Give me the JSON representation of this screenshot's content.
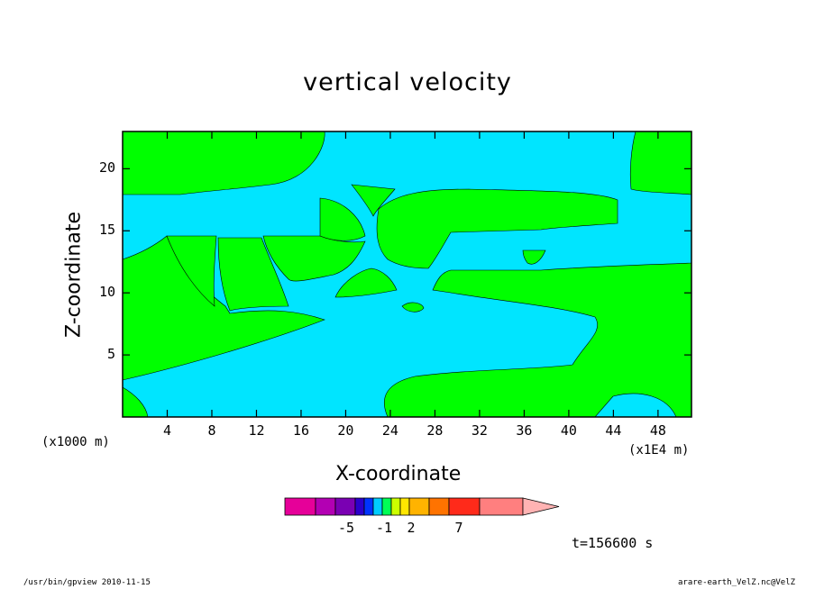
{
  "chart_data": {
    "type": "heatmap",
    "title": "vertical velocity",
    "xlabel": "X-coordinate",
    "ylabel": "Z-coordinate",
    "x_unit_note": "(x1000 m)",
    "x_axis_scale_note": "(x1E4 m)",
    "xlim": [
      0,
      51
    ],
    "ylim": [
      0,
      23
    ],
    "x_ticks": [
      "4",
      "8",
      "12",
      "16",
      "20",
      "24",
      "28",
      "32",
      "36",
      "40",
      "44",
      "48"
    ],
    "x_tick_values": [
      4,
      8,
      12,
      16,
      20,
      24,
      28,
      32,
      36,
      40,
      44,
      48
    ],
    "y_ticks": [
      "5",
      "10",
      "15",
      "20"
    ],
    "y_tick_values": [
      5,
      10,
      15,
      20
    ],
    "field_colors": {
      "positive_weak": "#00ff00",
      "negative_weak": "#00e5ff"
    },
    "colorbar": {
      "colors": [
        "#e60099",
        "#b300b3",
        "#7a00b3",
        "#2b00cc",
        "#0033ff",
        "#00ccff",
        "#00ff55",
        "#ccff00",
        "#ffe600",
        "#ffb300",
        "#ff7300",
        "#ff2a1a",
        "#ff7f7f",
        "#ffb3b3"
      ],
      "labels": [
        "-5",
        "-1",
        "2",
        "7"
      ]
    },
    "time_label": "t=156600 s"
  },
  "footer": {
    "left": "/usr/bin/gpview  2010-11-15",
    "right": "arare-earth_VelZ.nc@VelZ"
  }
}
